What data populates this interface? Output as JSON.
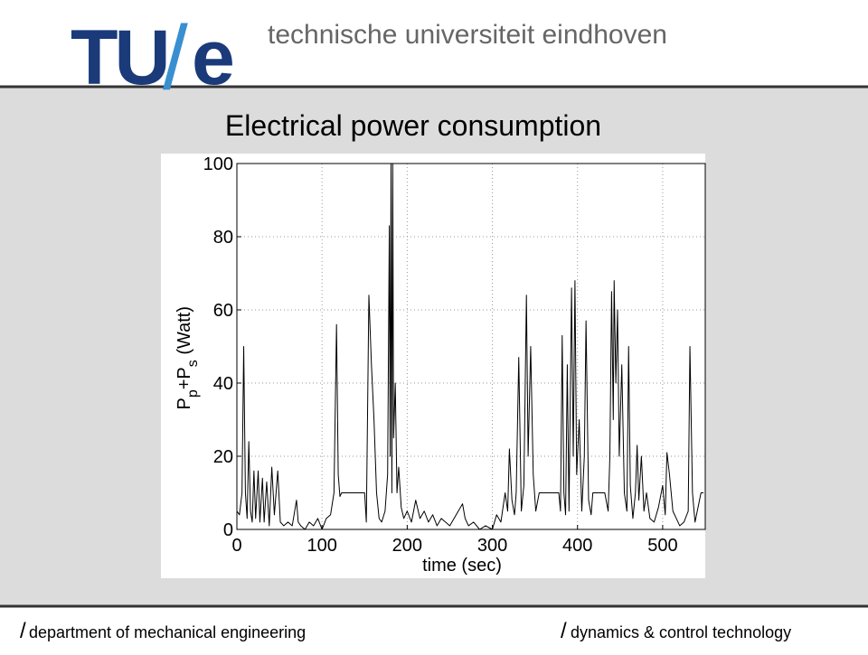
{
  "header": {
    "logo_tu": "TU",
    "logo_slash": "/",
    "logo_e": "e",
    "university": "technische universiteit eindhoven"
  },
  "footer": {
    "left_slash": "/",
    "left": "department of mechanical engineering",
    "right_slash": "/",
    "right": "dynamics & control technology"
  },
  "chart_data": {
    "type": "line",
    "title": "Electrical power consumption",
    "xlabel": "time (sec)",
    "ylabel_parts": [
      "P",
      "p",
      "+P",
      "s",
      " (Watt)"
    ],
    "xlim": [
      0,
      550
    ],
    "ylim": [
      0,
      100
    ],
    "xticks": [
      0,
      100,
      200,
      300,
      400,
      500
    ],
    "yticks": [
      0,
      20,
      40,
      60,
      80,
      100
    ],
    "grid": true,
    "color": "#000000",
    "x": [
      0,
      3,
      6,
      8,
      10,
      12,
      14,
      16,
      18,
      20,
      22,
      25,
      27,
      30,
      32,
      35,
      38,
      41,
      44,
      48,
      51,
      55,
      60,
      65,
      70,
      72,
      75,
      80,
      85,
      90,
      95,
      100,
      105,
      110,
      114,
      117,
      119,
      121,
      123,
      130,
      140,
      150,
      152,
      155,
      158,
      161,
      164,
      167,
      170,
      174,
      177,
      179,
      180,
      181,
      182,
      183,
      184,
      186,
      188,
      190,
      193,
      196,
      200,
      205,
      210,
      215,
      220,
      225,
      230,
      235,
      240,
      245,
      250,
      255,
      260,
      265,
      268,
      272,
      278,
      285,
      292,
      300,
      305,
      310,
      315,
      318,
      320,
      323,
      326,
      328,
      331,
      334,
      337,
      340,
      342,
      345,
      348,
      351,
      355,
      360,
      370,
      378,
      380,
      382,
      384,
      386,
      388,
      390,
      393,
      395,
      397,
      399,
      402,
      405,
      408,
      410,
      413,
      416,
      418,
      425,
      432,
      436,
      438,
      440,
      442,
      443,
      445,
      447,
      449,
      452,
      455,
      458,
      460,
      462,
      465,
      468,
      470,
      472,
      475,
      478,
      481,
      485,
      490,
      495,
      500,
      503,
      505,
      508,
      512,
      516,
      520,
      525,
      530,
      532,
      535,
      538,
      545,
      548
    ],
    "values": [
      5,
      4,
      10,
      50,
      10,
      3,
      24,
      5,
      2,
      16,
      3,
      16,
      2,
      14,
      2,
      13,
      1,
      17,
      4,
      16,
      2,
      1,
      2,
      1,
      8,
      2,
      1,
      0,
      2,
      1,
      3,
      0,
      3,
      4,
      10,
      56,
      15,
      9,
      10,
      10,
      10,
      10,
      2,
      64,
      45,
      30,
      10,
      3,
      2,
      5,
      15,
      83,
      20,
      100,
      10,
      100,
      25,
      40,
      10,
      17,
      6,
      3,
      5,
      2,
      8,
      3,
      5,
      2,
      4,
      1,
      3,
      2,
      1,
      3,
      5,
      7,
      3,
      1,
      2,
      0,
      1,
      0,
      4,
      2,
      10,
      5,
      22,
      8,
      4,
      10,
      47,
      5,
      12,
      64,
      20,
      50,
      15,
      5,
      10,
      10,
      10,
      10,
      5,
      53,
      10,
      4,
      45,
      5,
      66,
      20,
      68,
      15,
      30,
      5,
      20,
      57,
      8,
      4,
      10,
      10,
      10,
      5,
      20,
      65,
      30,
      68,
      40,
      60,
      20,
      45,
      10,
      5,
      50,
      12,
      3,
      10,
      23,
      8,
      20,
      5,
      10,
      3,
      2,
      6,
      12,
      4,
      21,
      15,
      5,
      3,
      1,
      2,
      5,
      50,
      10,
      2,
      10,
      10
    ]
  }
}
